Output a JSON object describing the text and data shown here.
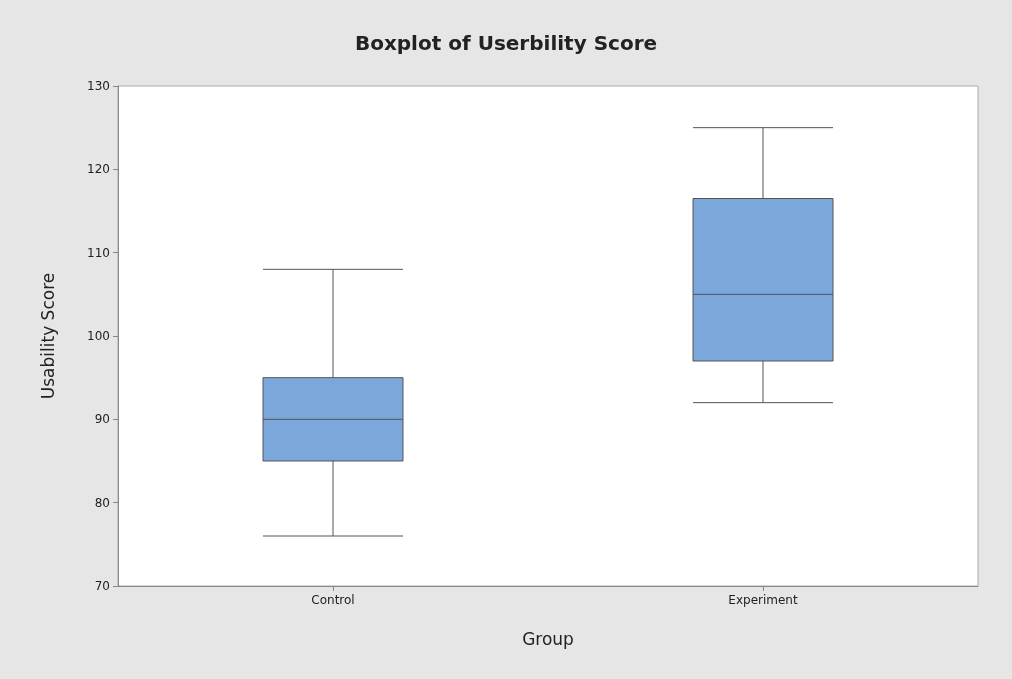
{
  "chart_data": {
    "type": "box",
    "title": "Boxplot of Userbility Score",
    "xlabel": "Group",
    "ylabel": "Usability Score",
    "categories": [
      "Control",
      "Experiment"
    ],
    "color": "#7ba7db",
    "boxes": [
      {
        "low": 76,
        "q1": 85,
        "median": 90,
        "q3": 95,
        "high": 108
      },
      {
        "low": 92,
        "q1": 97,
        "median": 105,
        "q3": 116.5,
        "high": 125
      }
    ],
    "ylim": [
      70,
      130
    ],
    "yticks": [
      70,
      80,
      90,
      100,
      110,
      120,
      130
    ]
  }
}
